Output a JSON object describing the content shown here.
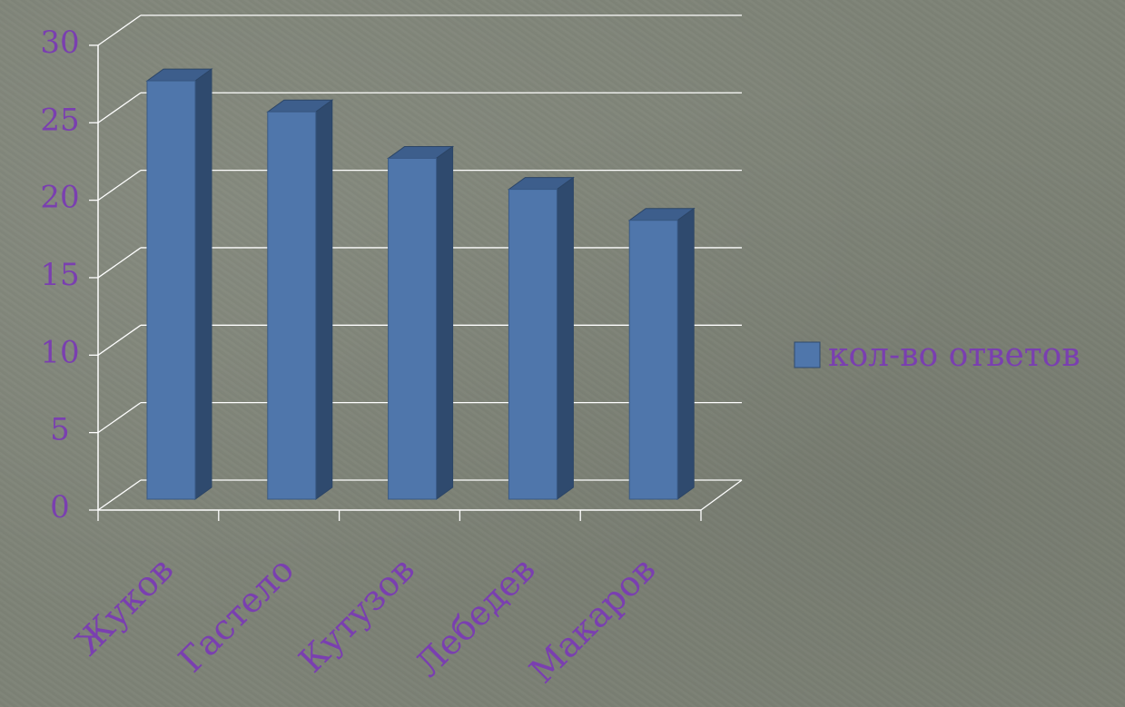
{
  "chart_data": {
    "type": "bar",
    "categories": [
      "Жуков",
      "Гастело",
      "Кутузов",
      "Лебедев",
      "Макаров"
    ],
    "series": [
      {
        "name": "кол-во ответов",
        "values": [
          27,
          25,
          22,
          20,
          18
        ]
      }
    ],
    "ylim": [
      0,
      30
    ],
    "yticks": [
      "0",
      "5",
      "10",
      "15",
      "20",
      "25",
      "30"
    ],
    "grid": true,
    "legend_position": "right",
    "colors": {
      "bar_front": "#4f76ab",
      "bar_side": "#2f4a6e",
      "bar_top": "#3d5e8c",
      "text": "#7a3fb0",
      "grid": "#ffffff"
    }
  }
}
